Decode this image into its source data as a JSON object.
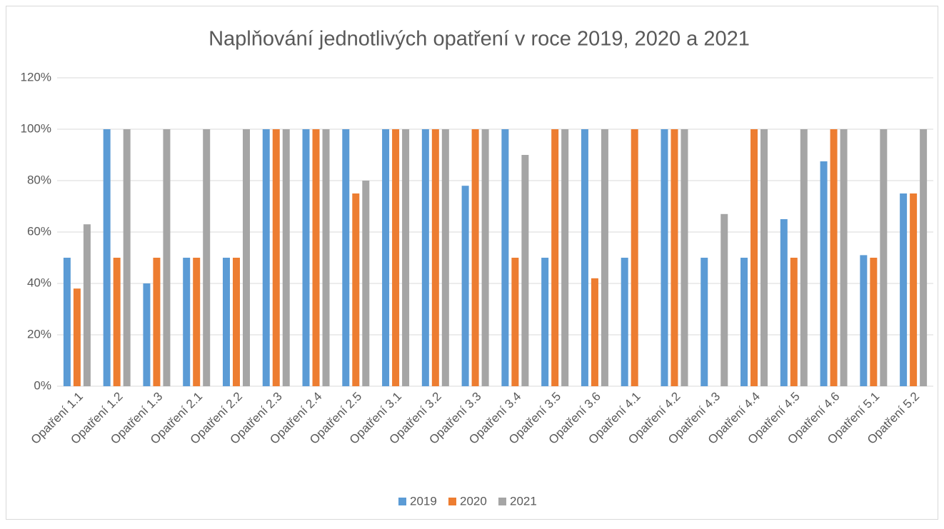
{
  "chart_data": {
    "type": "bar",
    "title": "Naplňování jednotlivých opatření v roce 2019, 2020 a 2021",
    "categories": [
      "Opatření 1.1",
      "Opatření 1.2",
      "Opatření 1.3",
      "Opatření 2.1",
      "Opatření 2.2",
      "Opatření 2.3",
      "Opatření 2.4",
      "Opatření 2.5",
      "Opatření 3.1",
      "Opatření 3.2",
      "Opatření 3.3",
      "Opatření 3.4",
      "Opatření 3.5",
      "Opatření 3.6",
      "Opatření 4.1",
      "Opatření 4.2",
      "Opatření 4.3",
      "Opatření 4.4",
      "Opatření 4.5",
      "Opatření 4.6",
      "Opatření 5.1",
      "Opatření 5.2"
    ],
    "series": [
      {
        "name": "2019",
        "color": "#5b9bd5",
        "values": [
          50,
          100,
          40,
          50,
          50,
          100,
          100,
          100,
          100,
          100,
          78,
          100,
          50,
          100,
          50,
          100,
          50,
          50,
          65,
          87.5,
          51,
          75
        ]
      },
      {
        "name": "2020",
        "color": "#ed7d31",
        "values": [
          38,
          50,
          50,
          50,
          50,
          100,
          100,
          75,
          100,
          100,
          100,
          50,
          100,
          42,
          100,
          100,
          0,
          100,
          50,
          100,
          50,
          75
        ]
      },
      {
        "name": "2021",
        "color": "#a5a5a5",
        "values": [
          63,
          100,
          100,
          100,
          100,
          100,
          100,
          80,
          100,
          100,
          100,
          90,
          100,
          100,
          0,
          100,
          67,
          100,
          100,
          100,
          100,
          100
        ]
      }
    ],
    "ylim": [
      0,
      120
    ],
    "yticks": [
      {
        "value": 0,
        "label": "0%"
      },
      {
        "value": 20,
        "label": "20%"
      },
      {
        "value": 40,
        "label": "40%"
      },
      {
        "value": 60,
        "label": "60%"
      },
      {
        "value": 80,
        "label": "80%"
      },
      {
        "value": 100,
        "label": "100%"
      },
      {
        "value": 120,
        "label": "120%"
      }
    ],
    "grid": true,
    "legend": "bottom"
  }
}
